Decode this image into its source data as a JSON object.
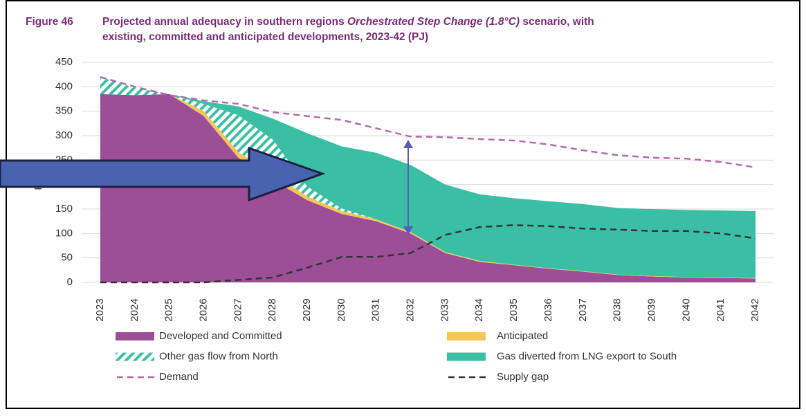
{
  "chart_data": {
    "type": "stacked_area",
    "figure_label": "Figure 46",
    "title_parts": [
      "Projected annual adequacy in southern regions ",
      "Orchestrated Step Change (1.8°C)",
      " scenario, with",
      "existing, committed and anticipated developments, 2023-42 (PJ)"
    ],
    "y_label": "PJ",
    "categories": [
      "2023",
      "2024",
      "2025",
      "2026",
      "2027",
      "2028",
      "2029",
      "2030",
      "2031",
      "2032",
      "2033",
      "2034",
      "2035",
      "2036",
      "2037",
      "2038",
      "2039",
      "2040",
      "2041",
      "2042"
    ],
    "series": [
      {
        "name": "Developed and Committed",
        "color": "#9c4f96",
        "kind": "area",
        "values": [
          385,
          383,
          385,
          340,
          255,
          210,
          168,
          140,
          125,
          100,
          60,
          42,
          35,
          28,
          22,
          15,
          12,
          10,
          9,
          8
        ]
      },
      {
        "name": "Anticipated",
        "color": "#f6c65b",
        "kind": "area",
        "values": [
          0,
          0,
          0,
          10,
          12,
          12,
          8,
          6,
          4,
          3,
          2,
          2,
          1,
          1,
          1,
          1,
          1,
          1,
          1,
          1
        ]
      },
      {
        "name": "Other gas flow from North",
        "color": "#3bbfa4",
        "kind": "area",
        "pattern": "hatch",
        "values": [
          35,
          15,
          0,
          15,
          75,
          70,
          20,
          5,
          0,
          0,
          0,
          0,
          0,
          0,
          0,
          0,
          0,
          0,
          0,
          0
        ]
      },
      {
        "name": "Gas diverted from LNG export to South",
        "color": "#3bbfa4",
        "kind": "area",
        "values": [
          0,
          0,
          0,
          5,
          18,
          43,
          109,
          127,
          136,
          137,
          138,
          136,
          136,
          137,
          137,
          136,
          137,
          137,
          137,
          137
        ]
      },
      {
        "name": "Demand",
        "color": "#b36aae",
        "kind": "line",
        "values": [
          420,
          400,
          383,
          372,
          365,
          348,
          340,
          332,
          315,
          298,
          297,
          293,
          290,
          282,
          270,
          260,
          255,
          253,
          246,
          235
        ]
      },
      {
        "name": "Supply gap",
        "color": "#333333",
        "kind": "line",
        "values": [
          0,
          0,
          0,
          0,
          5,
          10,
          30,
          52,
          52,
          60,
          97,
          113,
          117,
          115,
          110,
          108,
          105,
          105,
          100,
          90
        ]
      }
    ],
    "ylim": [
      0,
      450
    ],
    "yticks": [
      0,
      50,
      100,
      150,
      200,
      250,
      300,
      350,
      400,
      450
    ],
    "grid": true
  }
}
